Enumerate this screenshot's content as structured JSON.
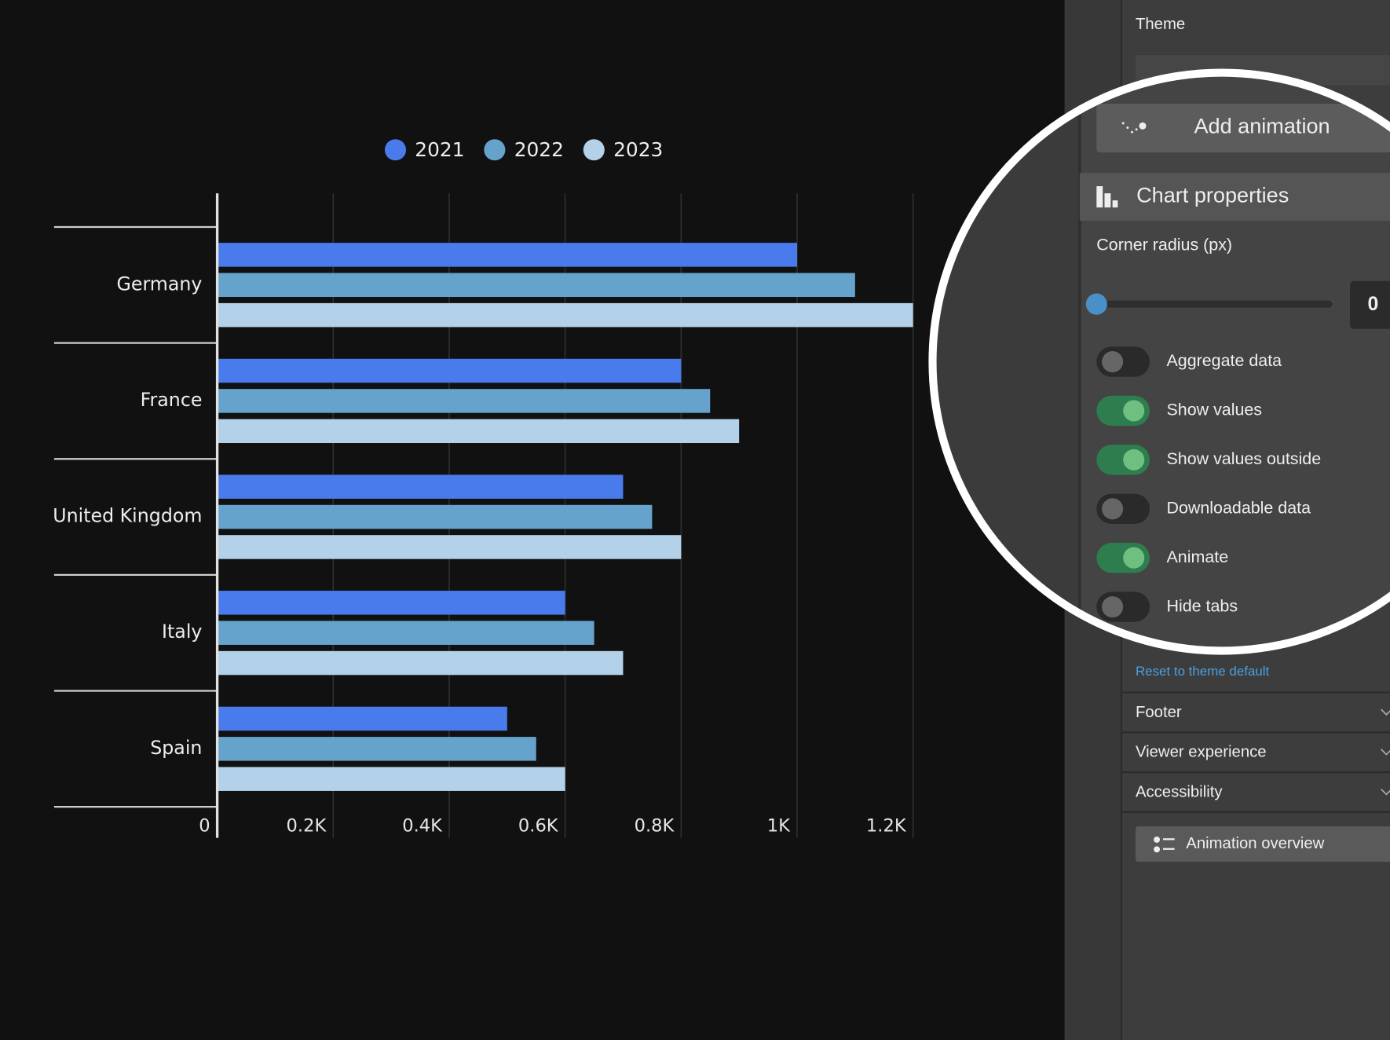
{
  "chart_data": {
    "type": "bar",
    "orientation": "horizontal",
    "categories": [
      "Germany",
      "France",
      "United Kingdom",
      "Italy",
      "Spain"
    ],
    "series": [
      {
        "name": "2021",
        "color": "#4a7bec",
        "values": [
          1000,
          800,
          700,
          600,
          500
        ]
      },
      {
        "name": "2022",
        "color": "#65a3cc",
        "values": [
          1100,
          850,
          750,
          650,
          550
        ]
      },
      {
        "name": "2023",
        "color": "#b3d1e8",
        "values": [
          1200,
          900,
          800,
          700,
          600
        ]
      }
    ],
    "xlim": [
      0,
      1200
    ],
    "xticks": [
      0,
      {
        "value": 200,
        "label": "0.2K"
      },
      {
        "value": 400,
        "label": "0.4K"
      },
      {
        "value": 600,
        "label": "0.6K"
      },
      {
        "value": 800,
        "label": "0.8K"
      },
      {
        "value": 1000,
        "label": "1K"
      },
      {
        "value": 1200,
        "label": "1.2K"
      }
    ],
    "grid": true,
    "legend": "top"
  },
  "panel": {
    "theme_label": "Theme",
    "add_animation": "Add animation",
    "section_title": "Chart properties",
    "corner_radius_label": "Corner radius (px)",
    "corner_radius": 0,
    "toggles": [
      {
        "label": "Aggregate data",
        "on": false
      },
      {
        "label": "Show values",
        "on": true
      },
      {
        "label": "Show values outside",
        "on": true
      },
      {
        "label": "Downloadable data",
        "on": false
      },
      {
        "label": "Animate",
        "on": true
      },
      {
        "label": "Hide tabs",
        "on": false
      }
    ],
    "reset_link": "Reset to theme default",
    "sections": [
      "Footer",
      "Viewer experience",
      "Accessibility"
    ],
    "animation_overview": "Animation overview"
  }
}
